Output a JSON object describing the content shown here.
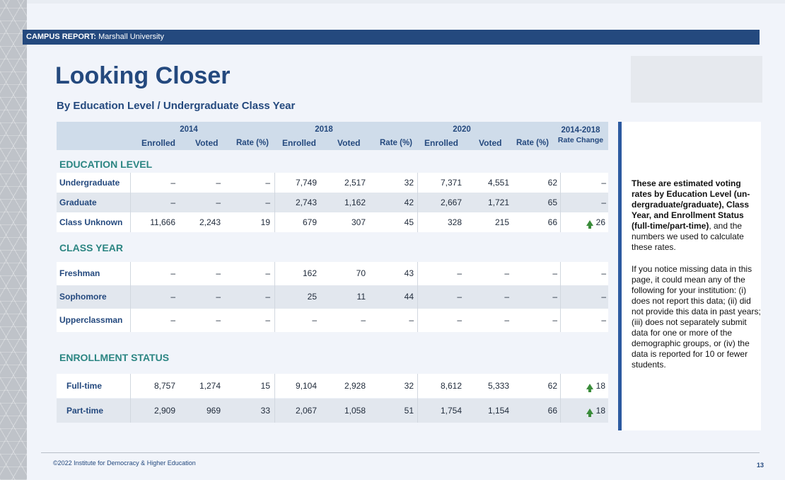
{
  "header": {
    "bold": "CAMPUS REPORT:",
    "text": "Marshall University"
  },
  "title": "Looking Closer",
  "subtitle": "By Education Level / Undergraduate Class Year",
  "table": {
    "years": [
      "2014",
      "2018",
      "2020"
    ],
    "cols": [
      "Enrolled",
      "Voted",
      "Rate (%)"
    ],
    "change_label": "2014-2018",
    "change_sub": "Rate Change",
    "sections": [
      {
        "label": "EDUCATION LEVEL",
        "rows": [
          {
            "label": "Undergraduate",
            "v": [
              "–",
              "–",
              "–",
              "7,749",
              "2,517",
              "32",
              "7,371",
              "4,551",
              "62"
            ],
            "change": "–",
            "up": false
          },
          {
            "label": "Graduate",
            "v": [
              "–",
              "–",
              "–",
              "2,743",
              "1,162",
              "42",
              "2,667",
              "1,721",
              "65"
            ],
            "change": "–",
            "up": false
          },
          {
            "label": "Class Unknown",
            "v": [
              "11,666",
              "2,243",
              "19",
              "679",
              "307",
              "45",
              "328",
              "215",
              "66"
            ],
            "change": "26",
            "up": true
          }
        ]
      },
      {
        "label": "CLASS YEAR",
        "rows": [
          {
            "label": "Freshman",
            "v": [
              "–",
              "–",
              "–",
              "162",
              "70",
              "43",
              "–",
              "–",
              "–"
            ],
            "change": "–",
            "up": false
          },
          {
            "label": "Sophomore",
            "v": [
              "–",
              "–",
              "–",
              "25",
              "11",
              "44",
              "–",
              "–",
              "–"
            ],
            "change": "–",
            "up": false
          },
          {
            "label": "Upperclassman",
            "v": [
              "–",
              "–",
              "–",
              "–",
              "–",
              "–",
              "–",
              "–",
              "–"
            ],
            "change": "–",
            "up": false
          }
        ]
      },
      {
        "label": "ENROLLMENT STATUS",
        "rows": [
          {
            "label": "Full-time",
            "v": [
              "8,757",
              "1,274",
              "15",
              "9,104",
              "2,928",
              "32",
              "8,612",
              "5,333",
              "62"
            ],
            "change": "18",
            "up": true
          },
          {
            "label": "Part-time",
            "v": [
              "2,909",
              "969",
              "33",
              "2,067",
              "1,058",
              "51",
              "1,754",
              "1,154",
              "66"
            ],
            "change": "18",
            "up": true
          }
        ]
      }
    ]
  },
  "notes": {
    "p1_bold": "These are estimated voting rates by Education Level (un-dergraduate/graduate), Class Year, and Enrollment Status (full-time/part-time)",
    "p1_tail": ", and the numbers we used to calculate these rates.",
    "p2": "If you notice missing data in this page, it could mean any of the following for your institution: (i) does not report this data; (ii) did not provide this data in past years; (iii) does not separately submit data for one or more of the demographic groups, or (iv) the data is reported for 10 or fewer students."
  },
  "footer": {
    "copyright": "©2022 Institute for Democracy & Higher Education",
    "page": "13"
  }
}
